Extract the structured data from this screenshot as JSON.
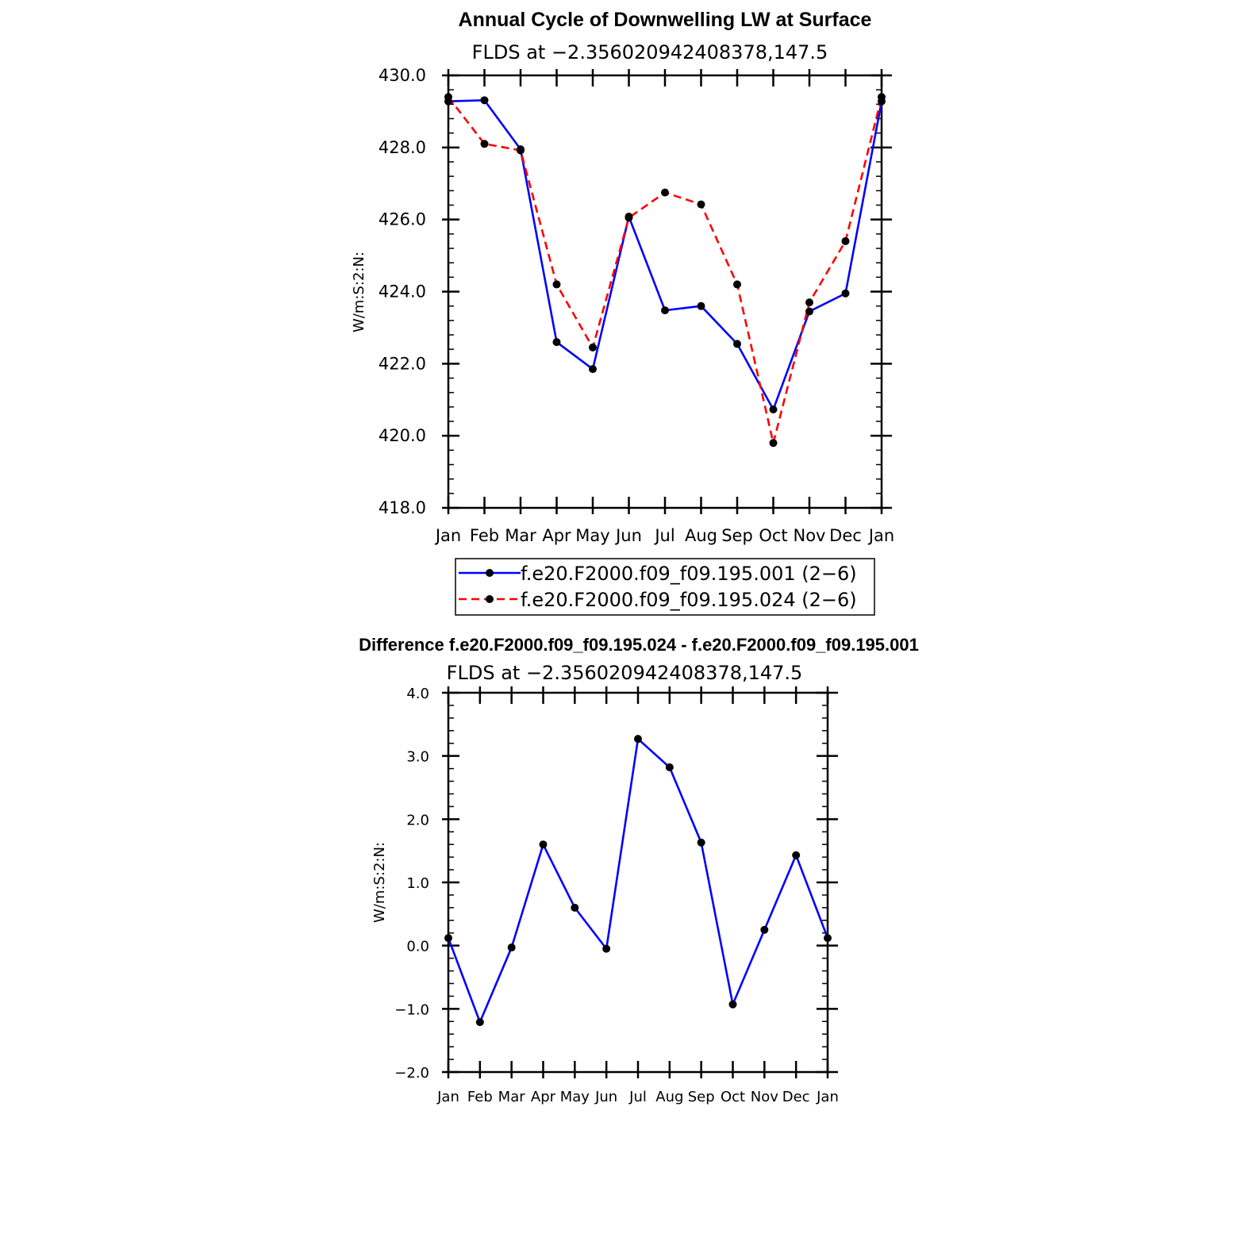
{
  "chart_data": [
    {
      "type": "line",
      "title": "Annual Cycle of Downwelling LW at Surface",
      "subtitle": "FLDS at −2.356020942408378,147.5",
      "ylabel": "W/m:S:2:N:",
      "xlabel": "",
      "ylim": [
        418,
        430
      ],
      "yticks": [
        "418.0",
        "420.0",
        "422.0",
        "424.0",
        "426.0",
        "428.0",
        "430.0"
      ],
      "categories": [
        "Jan",
        "Feb",
        "Mar",
        "Apr",
        "May",
        "Jun",
        "Jul",
        "Aug",
        "Sep",
        "Oct",
        "Nov",
        "Dec",
        "Jan"
      ],
      "series": [
        {
          "name": "f.e20.F2000.f09_f09.195.001 (2−6)",
          "color": "#0000ff",
          "dash": "solid",
          "values": [
            429.28,
            429.31,
            427.95,
            422.6,
            421.85,
            426.08,
            423.48,
            423.6,
            422.55,
            420.73,
            423.45,
            423.95,
            429.28
          ]
        },
        {
          "name": "f.e20.F2000.f09_f09.195.024 (2−6)",
          "color": "#ff0000",
          "dash": "dashed",
          "values": [
            429.4,
            428.1,
            427.92,
            424.2,
            422.45,
            426.05,
            426.75,
            426.42,
            424.2,
            419.8,
            423.7,
            425.4,
            429.4
          ]
        }
      ],
      "legend": "below"
    },
    {
      "type": "line",
      "title": "Difference f.e20.F2000.f09_f09.195.024 - f.e20.F2000.f09_f09.195.001",
      "subtitle": "FLDS at −2.356020942408378,147.5",
      "ylabel": "W/m:S:2:N:",
      "xlabel": "",
      "ylim": [
        -2,
        4
      ],
      "yticks": [
        "−2.0",
        "−1.0",
        "0.0",
        "1.0",
        "2.0",
        "3.0",
        "4.0"
      ],
      "categories": [
        "Jan",
        "Feb",
        "Mar",
        "Apr",
        "May",
        "Jun",
        "Jul",
        "Aug",
        "Sep",
        "Oct",
        "Nov",
        "Dec",
        "Jan"
      ],
      "series": [
        {
          "name": "Difference",
          "color": "#0000ff",
          "dash": "solid",
          "values": [
            0.12,
            -1.21,
            -0.03,
            1.6,
            0.6,
            -0.05,
            3.27,
            2.82,
            1.63,
            -0.93,
            0.25,
            1.43,
            0.12
          ]
        }
      ]
    }
  ]
}
